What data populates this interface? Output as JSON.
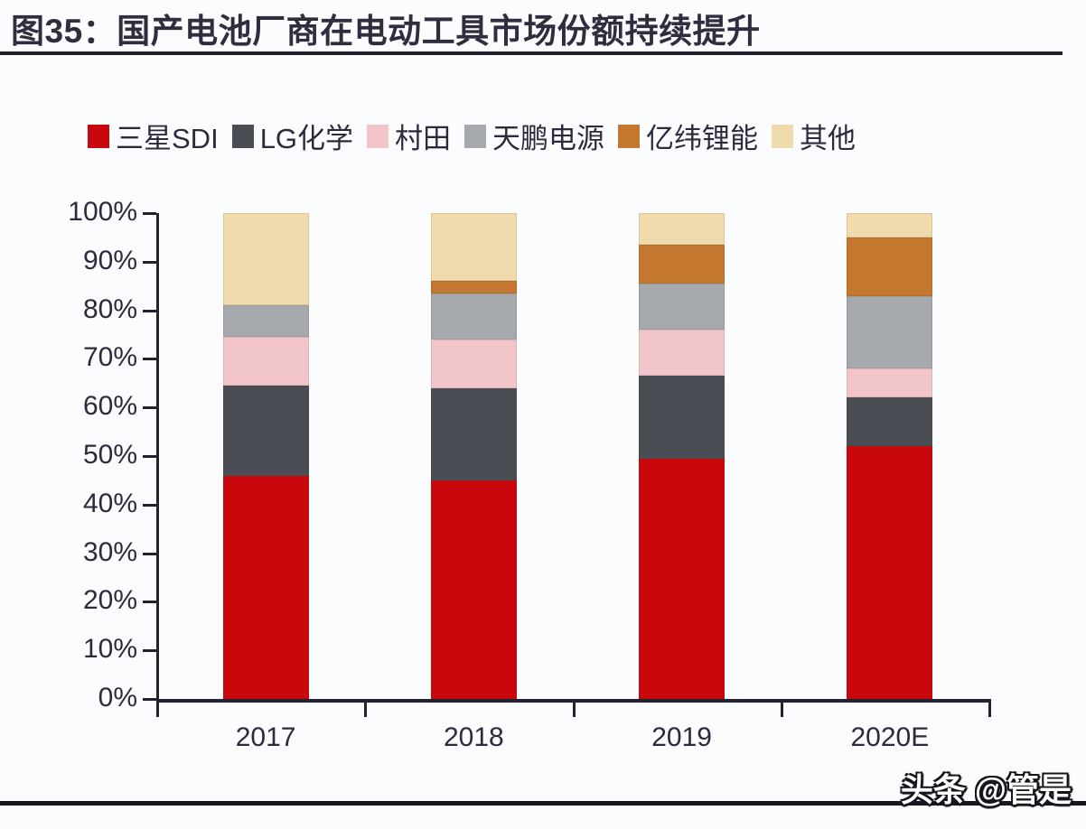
{
  "header": {
    "title": "图35：国产电池厂商在电动工具市场份额持续提升"
  },
  "watermark": {
    "text": "头条 @管是"
  },
  "chart_data": {
    "type": "bar",
    "stacked": true,
    "title": "图35：国产电池厂商在电动工具市场份额持续提升",
    "xlabel": "",
    "ylabel": "",
    "unit": "%",
    "categories": [
      "2017",
      "2018",
      "2019",
      "2020E"
    ],
    "series": [
      {
        "name": "三星SDI",
        "color": "#c9080e",
        "values": [
          46,
          45,
          49.5,
          52
        ]
      },
      {
        "name": "LG化学",
        "color": "#4a4d54",
        "values": [
          18.5,
          19,
          17,
          10
        ]
      },
      {
        "name": "村田",
        "color": "#f1c5ca",
        "values": [
          10,
          10,
          9.5,
          6
        ]
      },
      {
        "name": "天鹏电源",
        "color": "#a6a9ae",
        "values": [
          6.5,
          9.5,
          9.5,
          15
        ]
      },
      {
        "name": "亿纬锂能",
        "color": "#c4782f",
        "values": [
          0,
          2.5,
          8,
          12
        ]
      },
      {
        "name": "其他",
        "color": "#efdbae",
        "values": [
          19,
          14,
          6.5,
          5
        ]
      }
    ],
    "ylim": [
      0,
      100
    ],
    "ytick_step": 10,
    "yticks": [
      "0%",
      "10%",
      "20%",
      "30%",
      "40%",
      "50%",
      "60%",
      "70%",
      "80%",
      "90%",
      "100%"
    ],
    "grid": false,
    "legend_position": "top",
    "axis_color": "#23232f",
    "text_color": "#2b2b3d"
  }
}
